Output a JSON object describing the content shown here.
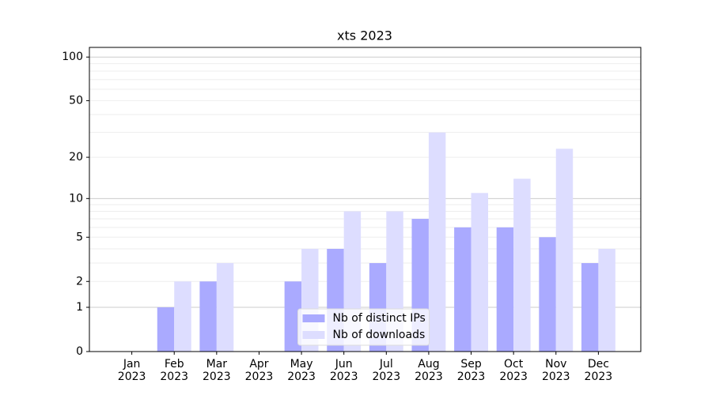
{
  "chart_data": {
    "type": "bar",
    "title": "xts 2023",
    "categories": [
      "Jan\n2023",
      "Feb\n2023",
      "Mar\n2023",
      "Apr\n2023",
      "May\n2023",
      "Jun\n2023",
      "Jul\n2023",
      "Aug\n2023",
      "Sep\n2023",
      "Oct\n2023",
      "Nov\n2023",
      "Dec\n2023"
    ],
    "series": [
      {
        "name": "Nb of distinct IPs",
        "color": "#aaaaff",
        "values": [
          0,
          1,
          2,
          0,
          2,
          4,
          3,
          7,
          6,
          6,
          5,
          3
        ]
      },
      {
        "name": "Nb of downloads",
        "color": "#ddddff",
        "values": [
          0,
          2,
          3,
          0,
          4,
          8,
          8,
          30,
          11,
          14,
          23,
          4
        ]
      }
    ],
    "yscale": "symlog",
    "ylim": [
      0,
      116.5
    ],
    "yticks": [
      0,
      1,
      2,
      5,
      10,
      20,
      50,
      100
    ],
    "minor_yticks": [
      3,
      4,
      6,
      7,
      8,
      9,
      30,
      40,
      60,
      70,
      80,
      90
    ],
    "grid": true,
    "legend": "lower center"
  }
}
